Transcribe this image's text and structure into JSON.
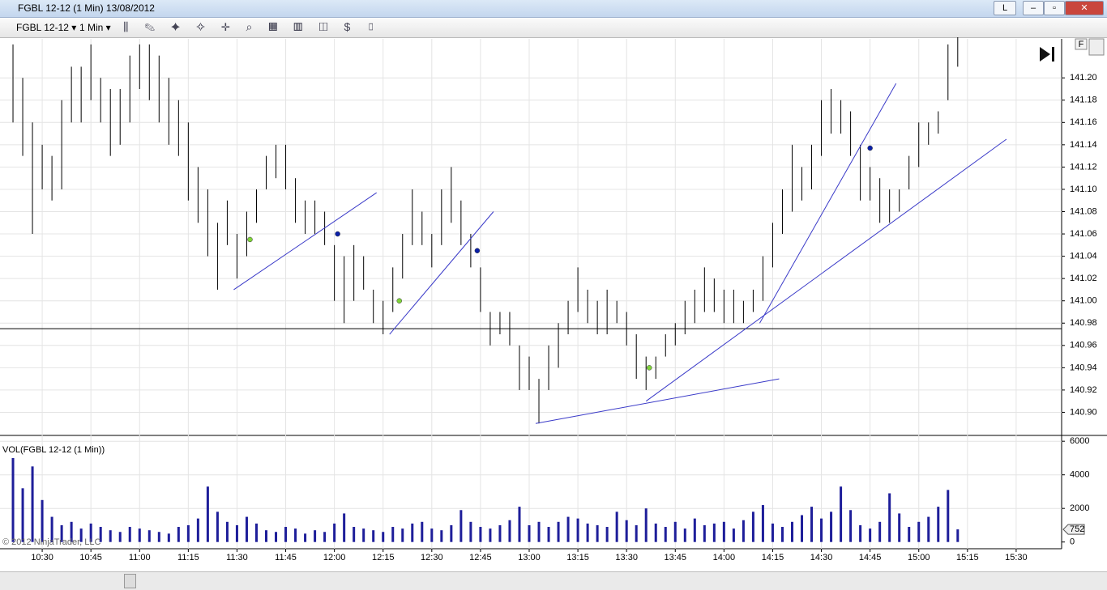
{
  "window": {
    "title": "FGBL 12-12 (1 Min)  13/08/2012",
    "button": "L"
  },
  "toolbar": {
    "instrument": "FGBL 12-12",
    "interval": "1 Min"
  },
  "copyright": "© 2012 NinjaTrader, LLC",
  "chart_data": [
    {
      "type": "ohlc",
      "color": "#000000",
      "button": "F",
      "x": [
        "10:21",
        "10:24",
        "10:27",
        "10:30",
        "10:33",
        "10:36",
        "10:39",
        "10:42",
        "10:45",
        "10:48",
        "10:51",
        "10:54",
        "10:57",
        "11:00",
        "11:03",
        "11:06",
        "11:09",
        "11:12",
        "11:15",
        "11:18",
        "11:21",
        "11:24",
        "11:27",
        "11:30",
        "11:33",
        "11:36",
        "11:39",
        "11:42",
        "11:45",
        "11:48",
        "11:51",
        "11:54",
        "11:57",
        "12:00",
        "12:03",
        "12:06",
        "12:09",
        "12:12",
        "12:15",
        "12:18",
        "12:21",
        "12:24",
        "12:27",
        "12:30",
        "12:33",
        "12:36",
        "12:39",
        "12:42",
        "12:45",
        "12:48",
        "12:51",
        "12:54",
        "12:57",
        "13:00",
        "13:03",
        "13:06",
        "13:09",
        "13:12",
        "13:15",
        "13:18",
        "13:21",
        "13:24",
        "13:27",
        "13:30",
        "13:33",
        "13:36",
        "13:39",
        "13:42",
        "13:45",
        "13:48",
        "13:51",
        "13:54",
        "13:57",
        "14:00",
        "14:03",
        "14:06",
        "14:09",
        "14:12",
        "14:15",
        "14:18",
        "14:21",
        "14:24",
        "14:27",
        "14:30",
        "14:33",
        "14:36",
        "14:39",
        "14:42",
        "14:45",
        "14:48",
        "14:51",
        "14:54",
        "14:57",
        "15:00",
        "15:03",
        "15:06",
        "15:09",
        "15:12"
      ],
      "high": [
        141.23,
        141.2,
        141.16,
        141.14,
        141.13,
        141.18,
        141.21,
        141.21,
        141.23,
        141.2,
        141.19,
        141.19,
        141.22,
        141.23,
        141.23,
        141.22,
        141.2,
        141.18,
        141.16,
        141.12,
        141.1,
        141.07,
        141.09,
        141.06,
        141.08,
        141.1,
        141.13,
        141.14,
        141.14,
        141.11,
        141.09,
        141.09,
        141.08,
        141.05,
        141.04,
        141.05,
        141.04,
        141.01,
        141.0,
        141.03,
        141.06,
        141.1,
        141.08,
        141.06,
        141.1,
        141.12,
        141.09,
        141.06,
        141.03,
        140.99,
        140.99,
        140.99,
        140.96,
        140.95,
        140.93,
        140.96,
        140.98,
        141.0,
        141.03,
        141.01,
        141.0,
        141.01,
        141.0,
        140.99,
        140.97,
        140.95,
        140.95,
        140.97,
        140.98,
        141.0,
        141.01,
        141.03,
        141.02,
        141.01,
        141.01,
        141.0,
        141.01,
        141.04,
        141.07,
        141.1,
        141.14,
        141.12,
        141.14,
        141.18,
        141.19,
        141.18,
        141.17,
        141.14,
        141.12,
        141.11,
        141.1,
        141.1,
        141.13,
        141.16,
        141.16,
        141.17,
        141.23,
        141.24
      ],
      "low": [
        141.16,
        141.13,
        141.06,
        141.1,
        141.09,
        141.1,
        141.16,
        141.16,
        141.18,
        141.16,
        141.13,
        141.14,
        141.16,
        141.19,
        141.18,
        141.16,
        141.14,
        141.13,
        141.09,
        141.07,
        141.04,
        141.01,
        141.05,
        141.02,
        141.04,
        141.07,
        141.1,
        141.11,
        141.1,
        141.07,
        141.06,
        141.06,
        141.05,
        141.0,
        140.98,
        141.0,
        141.01,
        140.98,
        140.97,
        140.99,
        141.02,
        141.05,
        141.05,
        141.03,
        141.05,
        141.07,
        141.05,
        141.03,
        140.99,
        140.96,
        140.97,
        140.96,
        140.92,
        140.92,
        140.89,
        140.92,
        140.94,
        140.97,
        140.99,
        140.98,
        140.97,
        140.97,
        140.98,
        140.96,
        140.93,
        140.92,
        140.93,
        140.95,
        140.96,
        140.97,
        140.98,
        140.99,
        140.99,
        140.98,
        140.98,
        140.98,
        140.99,
        141.0,
        141.03,
        141.06,
        141.08,
        141.09,
        141.1,
        141.13,
        141.15,
        141.15,
        141.13,
        141.09,
        141.09,
        141.07,
        141.07,
        141.08,
        141.1,
        141.12,
        141.14,
        141.15,
        141.18,
        141.21
      ],
      "xlim": [
        "10:17",
        "15:44"
      ],
      "ylim": [
        140.88,
        141.235
      ],
      "xticks": [
        "10:30",
        "10:45",
        "11:00",
        "11:15",
        "11:30",
        "11:45",
        "12:00",
        "12:15",
        "12:30",
        "12:45",
        "13:00",
        "13:15",
        "13:30",
        "13:45",
        "14:00",
        "14:15",
        "14:30",
        "14:45",
        "15:00",
        "15:15",
        "15:30"
      ],
      "yticks": [
        {
          "value": 140.9,
          "label": "140.90"
        },
        {
          "value": 140.92,
          "label": "140.92"
        },
        {
          "value": 140.94,
          "label": "140.94"
        },
        {
          "value": 140.96,
          "label": "140.96"
        },
        {
          "value": 140.98,
          "label": "140.98"
        },
        {
          "value": 141.0,
          "label": "141.00"
        },
        {
          "value": 141.02,
          "label": "141.02"
        },
        {
          "value": 141.04,
          "label": "141.04"
        },
        {
          "value": 141.06,
          "label": "141.06"
        },
        {
          "value": 141.08,
          "label": "141.08"
        },
        {
          "value": 141.1,
          "label": "141.10"
        },
        {
          "value": 141.12,
          "label": "141.12"
        },
        {
          "value": 141.14,
          "label": "141.14"
        },
        {
          "value": 141.16,
          "label": "141.16"
        },
        {
          "value": 141.18,
          "label": "141.18"
        },
        {
          "value": 141.2,
          "label": "141.20"
        }
      ],
      "grid": true,
      "hline": 140.975,
      "line_color": "#3a3ac8",
      "trendlines": [
        {
          "x": [
            "11:29",
            "12:13"
          ],
          "y": [
            141.01,
            141.097
          ]
        },
        {
          "x": [
            "12:17",
            "12:49"
          ],
          "y": [
            140.97,
            141.08
          ]
        },
        {
          "x": [
            "13:02",
            "14:17"
          ],
          "y": [
            140.89,
            140.93
          ]
        },
        {
          "x": [
            "13:36",
            "15:27"
          ],
          "y": [
            140.91,
            141.145
          ]
        },
        {
          "x": [
            "14:11",
            "14:53"
          ],
          "y": [
            140.98,
            141.195
          ]
        }
      ],
      "markers": [
        {
          "x": "11:34",
          "y": 141.055,
          "color": "#7fd33a"
        },
        {
          "x": "12:01",
          "y": 141.06,
          "color": "#0a1fa8"
        },
        {
          "x": "12:20",
          "y": 141.0,
          "color": "#7fd33a"
        },
        {
          "x": "12:44",
          "y": 141.045,
          "color": "#0a1fa8"
        },
        {
          "x": "13:37",
          "y": 140.94,
          "color": "#7fd33a"
        },
        {
          "x": "14:45",
          "y": 141.137,
          "color": "#0a1fa8"
        }
      ]
    },
    {
      "type": "bar",
      "title": "VOL(FGBL 12-12 (1 Min))",
      "color": "#1e1e9a",
      "values": [
        5000,
        3200,
        4500,
        2500,
        1500,
        1000,
        1200,
        800,
        1100,
        900,
        700,
        600,
        900,
        800,
        700,
        600,
        500,
        900,
        1000,
        1400,
        3300,
        1800,
        1200,
        1000,
        1500,
        1100,
        700,
        600,
        900,
        800,
        500,
        700,
        600,
        1100,
        1700,
        900,
        800,
        700,
        600,
        900,
        800,
        1100,
        1200,
        800,
        700,
        1000,
        1900,
        1200,
        900,
        800,
        1000,
        1300,
        2100,
        1000,
        1200,
        900,
        1200,
        1500,
        1400,
        1100,
        1000,
        900,
        1800,
        1300,
        1000,
        2000,
        1100,
        900,
        1200,
        800,
        1400,
        1000,
        1100,
        1200,
        800,
        1300,
        1800,
        2200,
        1100,
        900,
        1200,
        1600,
        2100,
        1400,
        1800,
        3300,
        1900,
        1000,
        800,
        1200,
        2900,
        1700,
        900,
        1200,
        1500,
        2100,
        3100,
        752
      ],
      "ylim": [
        -400,
        6250
      ],
      "yticks": [
        0,
        2000,
        4000,
        6000
      ],
      "grid": true
    }
  ]
}
